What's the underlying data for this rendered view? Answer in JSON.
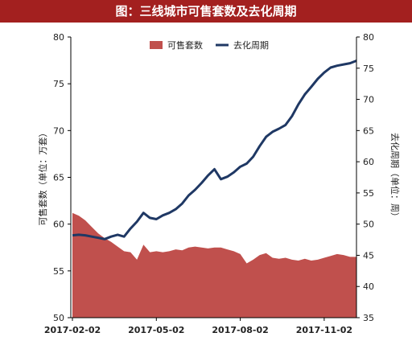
{
  "chart_data": {
    "type": "area+line",
    "title": "图：三线城市可售套数及去化周期",
    "left_axis": {
      "label": "可售套数（单位：万套）",
      "ylim": [
        50,
        80
      ],
      "ticks": [
        "50",
        "55",
        "60",
        "65",
        "70",
        "75",
        "80"
      ]
    },
    "right_axis": {
      "label": "去化周期（单位：周）",
      "ylim": [
        35,
        80
      ],
      "ticks": [
        "35",
        "40",
        "45",
        "50",
        "55",
        "60",
        "65",
        "70",
        "75",
        "80"
      ]
    },
    "x_ticks": [
      "2017-02-02",
      "2017-05-02",
      "2017-08-02",
      "2017-11-02"
    ],
    "x_tick_index": [
      0,
      13,
      26,
      39
    ],
    "legend_position": "top",
    "series": [
      {
        "name": "可售套数",
        "type": "area",
        "axis": "left",
        "color": "#c0504d",
        "values": [
          61.2,
          60.9,
          60.4,
          59.7,
          59.0,
          58.5,
          58.1,
          57.6,
          57.1,
          57.0,
          56.2,
          57.8,
          57.0,
          57.1,
          57.0,
          57.1,
          57.3,
          57.2,
          57.5,
          57.6,
          57.5,
          57.4,
          57.5,
          57.5,
          57.3,
          57.1,
          56.8,
          55.8,
          56.2,
          56.7,
          56.9,
          56.4,
          56.3,
          56.4,
          56.2,
          56.1,
          56.3,
          56.1,
          56.2,
          56.4,
          56.6,
          56.8,
          56.7,
          56.5,
          56.5
        ]
      },
      {
        "name": "去化周期",
        "type": "line",
        "axis": "right",
        "color": "#1f3864",
        "values": [
          48.2,
          48.3,
          48.2,
          48.0,
          47.8,
          47.6,
          48.0,
          48.3,
          48.0,
          49.3,
          50.4,
          51.8,
          51.0,
          50.8,
          51.4,
          51.8,
          52.4,
          53.3,
          54.6,
          55.5,
          56.6,
          57.8,
          58.8,
          57.2,
          57.6,
          58.3,
          59.2,
          59.7,
          60.8,
          62.5,
          64.0,
          64.8,
          65.3,
          65.9,
          67.3,
          69.2,
          70.8,
          72.0,
          73.3,
          74.3,
          75.1,
          75.4,
          75.6,
          75.8,
          76.2
        ]
      }
    ]
  }
}
